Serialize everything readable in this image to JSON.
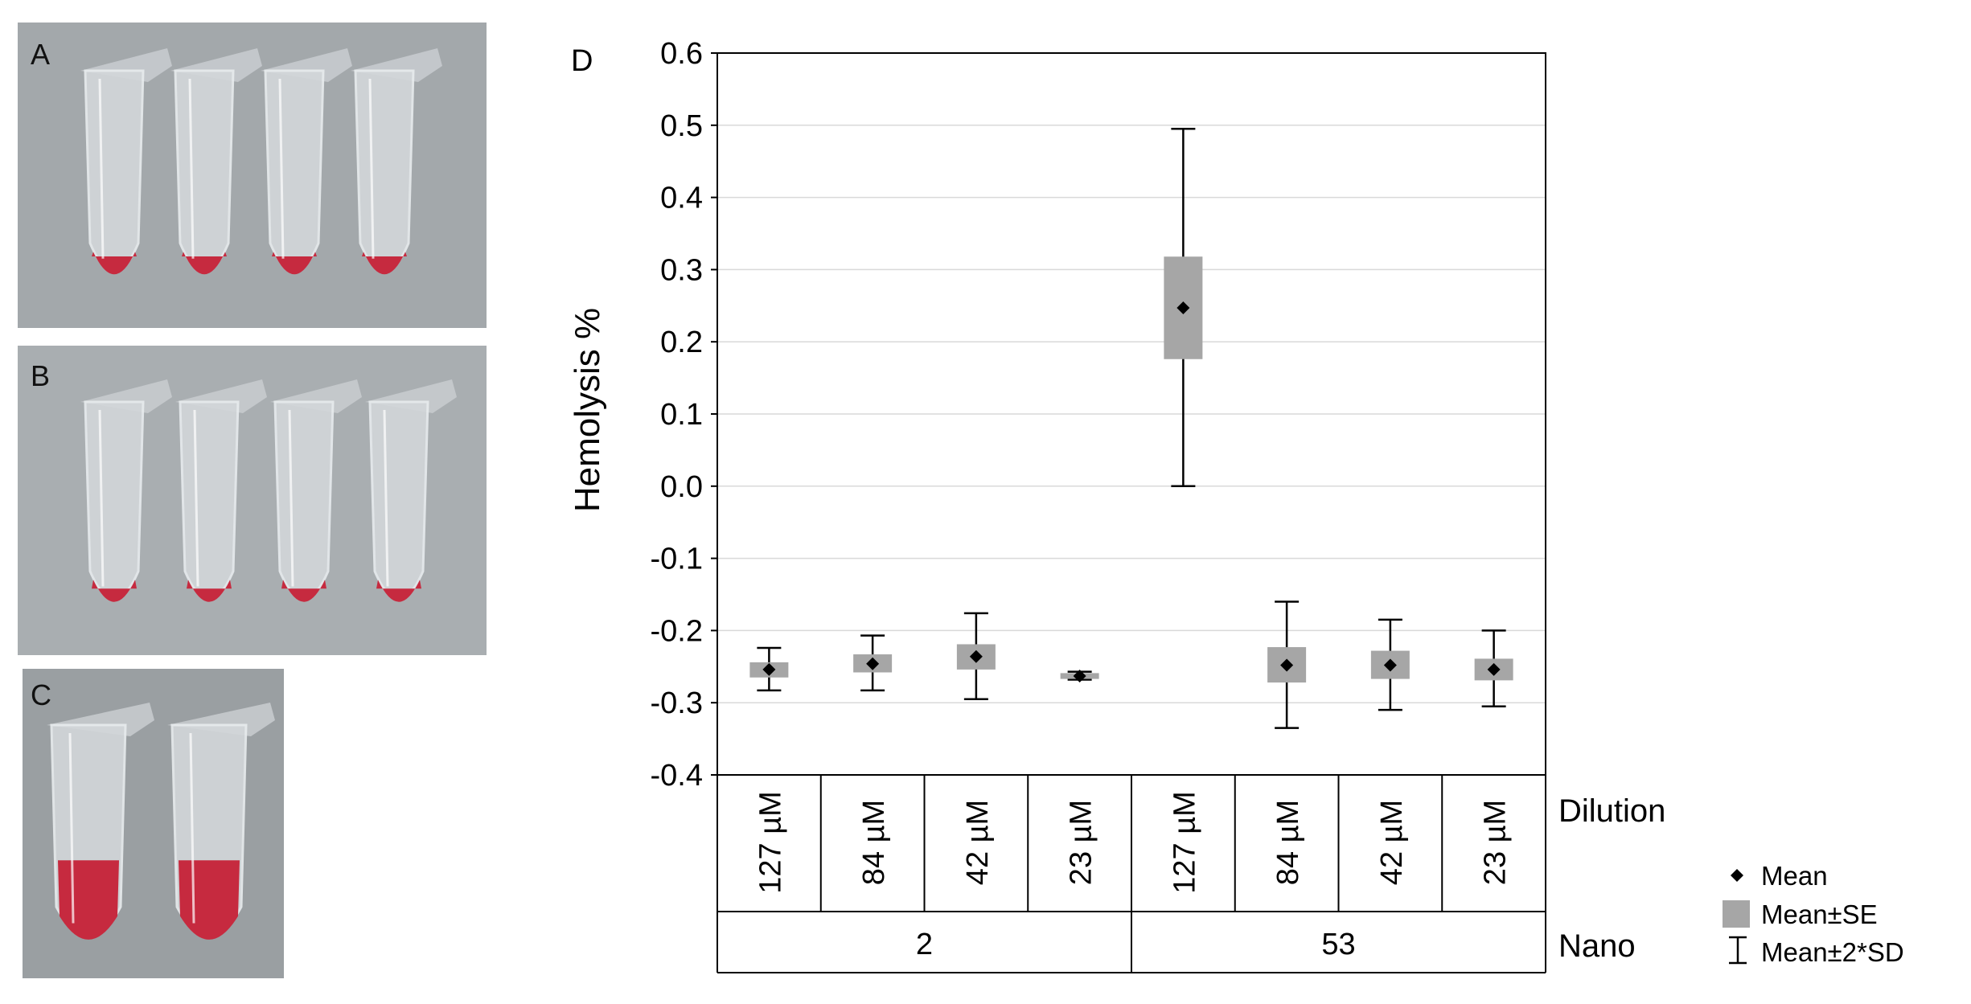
{
  "panels": {
    "a_label": "A",
    "b_label": "B",
    "c_label": "C",
    "d_label": "D"
  },
  "photos": {
    "a_tubes": 4,
    "b_tubes": 4,
    "c_tubes": 2,
    "background_color": "#9ea3a6",
    "blood_color": "#c62a3f"
  },
  "colors": {
    "box_fill": "#a6a6a6",
    "grid": "#d9d9d9",
    "ink": "#000000"
  },
  "chart_data": {
    "type": "box",
    "ylabel": "Hemolysis %",
    "ylim": [
      -0.4,
      0.6
    ],
    "yticks": [
      "0.6",
      "0.5",
      "0.4",
      "0.3",
      "0.2",
      "0.1",
      "0.0",
      "-0.1",
      "-0.2",
      "-0.3",
      "-0.4"
    ],
    "grid": "horizontal",
    "row_headers": {
      "dilution": "Dilution",
      "nano": "Nano"
    },
    "groups": [
      {
        "nano": "2",
        "dilutions": [
          "127 µM",
          "84 µM",
          "42 µM",
          "23 µM"
        ]
      },
      {
        "nano": "53",
        "dilutions": [
          "127 µM",
          "84 µM",
          "42 µM",
          "23 µM"
        ]
      }
    ],
    "points": [
      {
        "nano": "2",
        "dilution": "127 µM",
        "mean": -0.254,
        "se_low": -0.265,
        "se_high": -0.244,
        "sd2_low": -0.283,
        "sd2_high": -0.224
      },
      {
        "nano": "2",
        "dilution": "84 µM",
        "mean": -0.246,
        "se_low": -0.258,
        "se_high": -0.233,
        "sd2_low": -0.283,
        "sd2_high": -0.207
      },
      {
        "nano": "2",
        "dilution": "42 µM",
        "mean": -0.236,
        "se_low": -0.254,
        "se_high": -0.219,
        "sd2_low": -0.295,
        "sd2_high": -0.176
      },
      {
        "nano": "2",
        "dilution": "23 µM",
        "mean": -0.263,
        "se_low": -0.267,
        "se_high": -0.259,
        "sd2_low": -0.268,
        "sd2_high": -0.257
      },
      {
        "nano": "53",
        "dilution": "127 µM",
        "mean": 0.247,
        "se_low": 0.176,
        "se_high": 0.318,
        "sd2_low": 0.0,
        "sd2_high": 0.495
      },
      {
        "nano": "53",
        "dilution": "84 µM",
        "mean": -0.248,
        "se_low": -0.272,
        "se_high": -0.223,
        "sd2_low": -0.335,
        "sd2_high": -0.16
      },
      {
        "nano": "53",
        "dilution": "42 µM",
        "mean": -0.248,
        "se_low": -0.267,
        "se_high": -0.228,
        "sd2_low": -0.31,
        "sd2_high": -0.185
      },
      {
        "nano": "53",
        "dilution": "23 µM",
        "mean": -0.254,
        "se_low": -0.269,
        "se_high": -0.239,
        "sd2_low": -0.305,
        "sd2_high": -0.2
      }
    ],
    "legend": {
      "position": "bottom-right",
      "mean": "Mean",
      "se": "Mean±SE",
      "sd": "Mean±2*SD"
    }
  }
}
